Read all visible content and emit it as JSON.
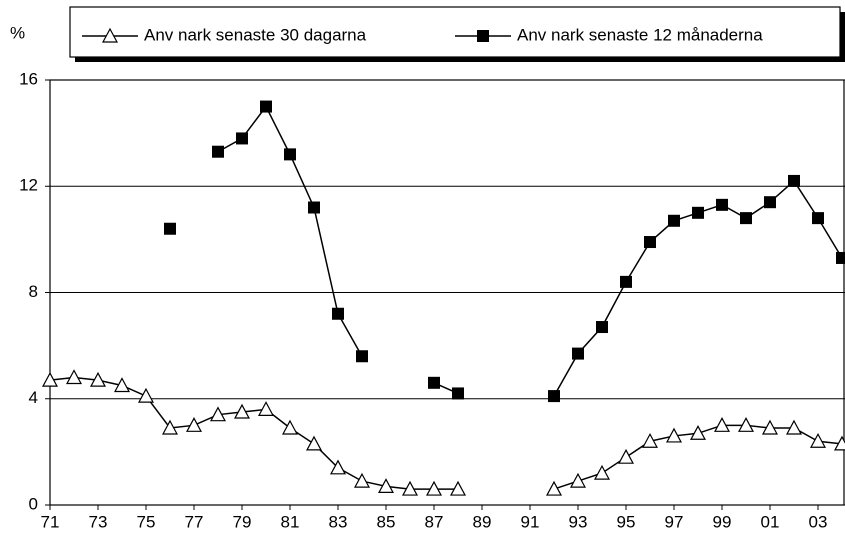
{
  "chart_data": {
    "type": "line",
    "y_label": "%",
    "categories": [
      "71",
      null,
      "73",
      null,
      "75",
      null,
      "77",
      null,
      "79",
      null,
      "81",
      null,
      "83",
      null,
      "85",
      null,
      "87",
      null,
      "89",
      null,
      "91",
      null,
      "93",
      null,
      "95",
      null,
      "97",
      null,
      "99",
      null,
      "01",
      null,
      "03",
      null
    ],
    "series": [
      {
        "name": "Anv nark senaste 30 dagarna",
        "color": "#000000",
        "marker": "triangle",
        "values": [
          4.7,
          4.8,
          4.7,
          4.5,
          4.1,
          2.9,
          3.0,
          3.4,
          3.5,
          3.6,
          2.9,
          2.3,
          1.4,
          0.9,
          0.7,
          0.6,
          0.6,
          0.6,
          null,
          null,
          null,
          0.6,
          0.9,
          1.2,
          1.8,
          2.4,
          2.6,
          2.7,
          3.0,
          3.0,
          2.9,
          2.9,
          2.4,
          2.3
        ]
      },
      {
        "name": "Anv nark senaste 12 månaderna",
        "color": "#000000",
        "marker": "square",
        "values": [
          null,
          null,
          null,
          null,
          null,
          10.4,
          null,
          13.3,
          13.8,
          15.0,
          13.2,
          11.2,
          7.2,
          5.6,
          null,
          null,
          4.6,
          4.2,
          null,
          null,
          null,
          4.1,
          5.7,
          6.7,
          8.4,
          9.9,
          10.7,
          11.0,
          11.3,
          10.8,
          11.4,
          12.2,
          10.8,
          9.3
        ]
      }
    ],
    "ylim": [
      0,
      16
    ],
    "yticks": [
      0,
      4,
      8,
      12,
      16
    ],
    "grid": true
  }
}
